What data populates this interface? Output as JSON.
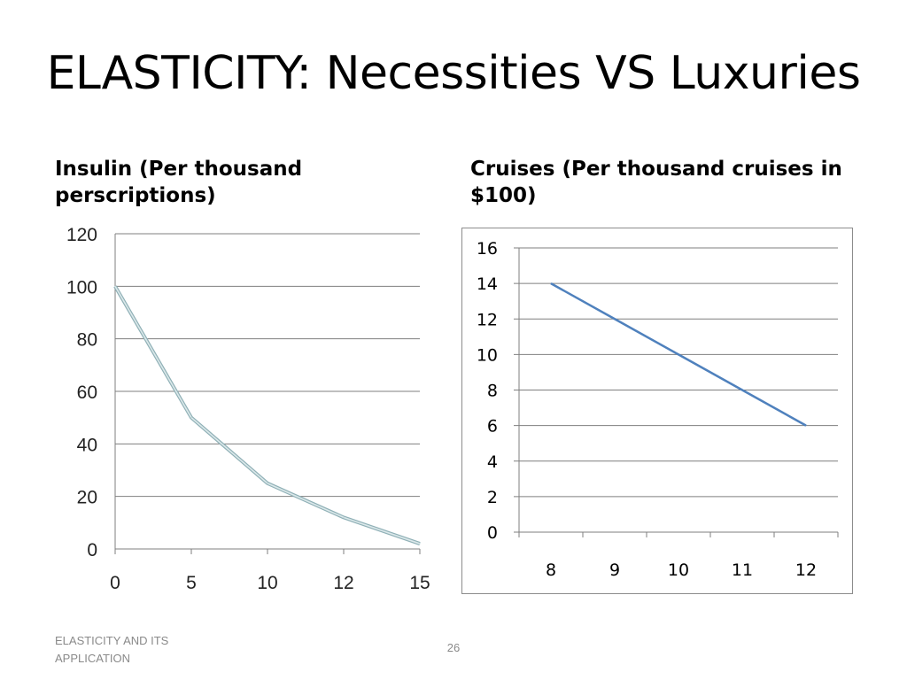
{
  "slide": {
    "title": "ELASTICITY: Necessities VS Luxuries",
    "footer_text": "ELASTICITY AND ITS APPLICATION",
    "page_number": "26"
  },
  "left": {
    "heading": "Insulin  (Per thousand perscriptions)"
  },
  "right": {
    "heading": "Cruises (Per thousand cruises in $100)"
  },
  "chart_data": [
    {
      "type": "line",
      "categories": [
        "0",
        "5",
        "10",
        "12",
        "15"
      ],
      "values": [
        100,
        50,
        25,
        12,
        2
      ],
      "yticks": [
        "0",
        "20",
        "40",
        "60",
        "80",
        "100",
        "120"
      ],
      "ylim": [
        0,
        120
      ],
      "grid": true,
      "line_color": "#a9c6cc"
    },
    {
      "type": "line",
      "categories": [
        "8",
        "9",
        "10",
        "11",
        "12"
      ],
      "values": [
        14,
        12,
        10,
        8,
        6
      ],
      "yticks": [
        "0",
        "2",
        "4",
        "6",
        "8",
        "10",
        "12",
        "14",
        "16"
      ],
      "ylim": [
        0,
        16
      ],
      "grid": true,
      "line_color": "#4f81bd"
    }
  ]
}
